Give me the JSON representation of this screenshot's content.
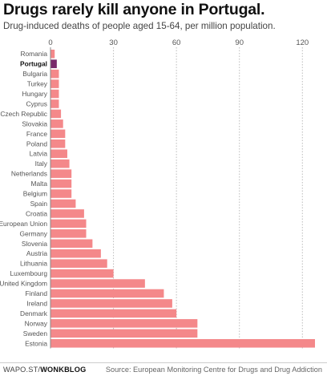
{
  "header": {
    "title": "Drugs rarely kill anyone in Portugal.",
    "subtitle": "Drug-induced deaths of people aged 15-64, per million population."
  },
  "footer": {
    "credit_prefix": "WAPO.ST/",
    "credit_brand": "WONKBLOG",
    "source": "Source: European Monitoring Centre for Drugs and Drug Addiction"
  },
  "chart_data": {
    "type": "bar",
    "orientation": "horizontal",
    "title": "Drugs rarely kill anyone in Portugal.",
    "subtitle": "Drug-induced deaths of people aged 15-64, per million population.",
    "xlabel": "",
    "ylabel": "",
    "xlim": [
      0,
      126
    ],
    "xticks": [
      0,
      30,
      60,
      90,
      120
    ],
    "grid": true,
    "highlight": "Portugal",
    "colors": {
      "bar": "#f4888a",
      "highlight": "#7a2a6b",
      "grid": "#bbbbbb"
    },
    "categories": [
      "Romania",
      "Portugal",
      "Bulgaria",
      "Turkey",
      "Hungary",
      "Cyprus",
      "Czech Republic",
      "Slovakia",
      "France",
      "Poland",
      "Latvia",
      "Italy",
      "Netherlands",
      "Malta",
      "Belgium",
      "Spain",
      "Croatia",
      "European Union",
      "Germany",
      "Slovenia",
      "Austria",
      "Lithuania",
      "Luxembourg",
      "United Kingdom",
      "Finland",
      "Ireland",
      "Denmark",
      "Norway",
      "Sweden",
      "Estonia"
    ],
    "values": [
      2,
      3,
      4,
      4,
      4,
      4,
      5,
      6,
      7,
      7,
      8,
      9,
      10,
      10,
      10,
      12,
      16,
      17,
      17,
      20,
      24,
      27,
      30,
      45,
      54,
      58,
      60,
      70,
      70,
      126
    ]
  }
}
